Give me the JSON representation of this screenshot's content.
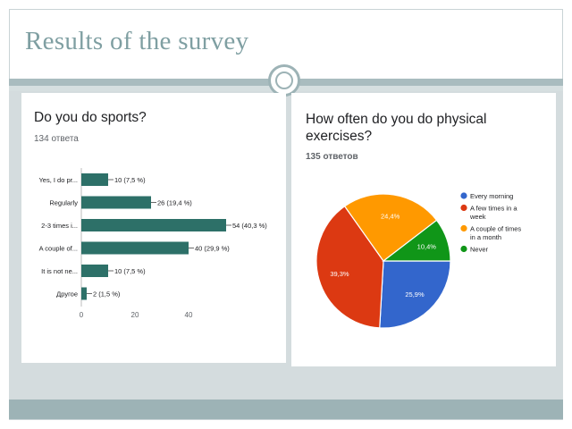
{
  "slide": {
    "title": "Results of the survey"
  },
  "chart_data": [
    {
      "type": "bar",
      "orientation": "horizontal",
      "title": "Do you do sports?",
      "subtitle": "134 ответа",
      "categories": [
        "Yes, I do pr...",
        "Regularly",
        "2-3 times i...",
        "A couple of...",
        "It is not ne...",
        "Другое"
      ],
      "values": [
        10,
        26,
        54,
        40,
        10,
        2
      ],
      "value_labels": [
        "10 (7,5 %)",
        "26 (19,4 %)",
        "54 (40,3 %)",
        "40 (29,9 %)",
        "10 (7,5 %)",
        "2 (1,5 %)"
      ],
      "xticks": [
        "0",
        "20",
        "40"
      ],
      "xlim": [
        0,
        54
      ],
      "color": "#2d7068",
      "grid": false
    },
    {
      "type": "pie",
      "title": "How often do you do physical exercises?",
      "subtitle": "135 ответов",
      "labels": [
        "Every morning",
        "A few times in a week",
        "A couple of times in a month",
        "Never"
      ],
      "legend_lines": [
        [
          "Every morning"
        ],
        [
          "A few times in a",
          "week"
        ],
        [
          "A couple of times",
          "in a month"
        ],
        [
          "Never"
        ]
      ],
      "values": [
        25.9,
        39.3,
        24.4,
        10.4
      ],
      "value_labels": [
        "25,9%",
        "39,3%",
        "24,4%",
        "10,4%"
      ],
      "colors": [
        "#3366cc",
        "#dc3912",
        "#ff9900",
        "#109618"
      ],
      "legend_position": "right"
    }
  ]
}
